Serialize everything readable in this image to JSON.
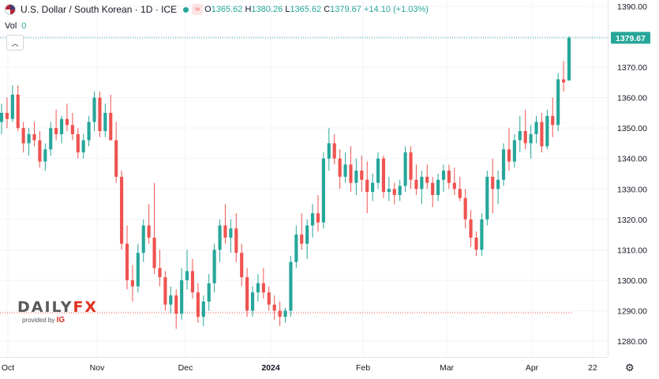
{
  "header": {
    "symbol": "U.S. Dollar / South Korean · 1D · ICE",
    "o_label": "O",
    "o_value": "1365.62",
    "h_label": "H",
    "h_value": "1380.26",
    "l_label": "L",
    "l_value": "1365.62",
    "c_label": "C",
    "c_value": "1379.67",
    "change": "+14.10 (+1.03%)",
    "tilde": "≈"
  },
  "volume": {
    "label": "Vol",
    "value": "0"
  },
  "logo": {
    "main_a": "DAILY",
    "main_b": "FX",
    "sub": "provided by",
    "brand": "IG"
  },
  "colors": {
    "up": "#26a69a",
    "down": "#ef5350",
    "grid": "#f0f3fa",
    "axis_text": "#131722"
  },
  "chart_data": {
    "type": "candlestick",
    "ylim": [
      1276,
      1391
    ],
    "y_ticks": [
      "1280.00",
      "1290.00",
      "1300.00",
      "1310.00",
      "1320.00",
      "1330.00",
      "1340.00",
      "1350.00",
      "1360.00",
      "1370.00",
      "1380.00",
      "1390.00"
    ],
    "x_labels": [
      "Oct",
      "Nov",
      "Dec",
      "2024",
      "Feb",
      "Mar",
      "Apr",
      "22"
    ],
    "last_price_label": "1379.67",
    "last_price": 1379.67,
    "reference_line": 1289.3,
    "candles": [
      [
        1352,
        1358,
        1348,
        1355
      ],
      [
        1355,
        1360,
        1350,
        1353
      ],
      [
        1353,
        1364,
        1352,
        1361
      ],
      [
        1361,
        1364,
        1349,
        1350
      ],
      [
        1350,
        1352,
        1342,
        1345
      ],
      [
        1345,
        1350,
        1341,
        1348
      ],
      [
        1348,
        1352,
        1344,
        1346
      ],
      [
        1346,
        1349,
        1337,
        1339
      ],
      [
        1339,
        1345,
        1336,
        1343
      ],
      [
        1343,
        1352,
        1341,
        1350
      ],
      [
        1350,
        1356,
        1346,
        1348
      ],
      [
        1348,
        1354,
        1345,
        1353
      ],
      [
        1353,
        1358,
        1349,
        1351
      ],
      [
        1351,
        1355,
        1346,
        1348
      ],
      [
        1348,
        1350,
        1340,
        1342
      ],
      [
        1342,
        1348,
        1340,
        1346
      ],
      [
        1346,
        1354,
        1344,
        1352
      ],
      [
        1352,
        1362,
        1349,
        1360
      ],
      [
        1360,
        1362,
        1347,
        1349
      ],
      [
        1349,
        1358,
        1347,
        1355
      ],
      [
        1355,
        1361,
        1346,
        1346
      ],
      [
        1346,
        1352,
        1332,
        1334
      ],
      [
        1334,
        1336,
        1310,
        1312
      ],
      [
        1312,
        1318,
        1297,
        1300
      ],
      [
        1300,
        1305,
        1293,
        1298
      ],
      [
        1298,
        1312,
        1296,
        1309
      ],
      [
        1309,
        1320,
        1306,
        1318
      ],
      [
        1318,
        1325,
        1312,
        1314
      ],
      [
        1314,
        1332,
        1302,
        1304
      ],
      [
        1304,
        1310,
        1298,
        1301
      ],
      [
        1301,
        1303,
        1290,
        1292
      ],
      [
        1292,
        1298,
        1289,
        1295
      ],
      [
        1295,
        1297,
        1284,
        1289
      ],
      [
        1289,
        1304,
        1287,
        1300
      ],
      [
        1300,
        1310,
        1297,
        1303
      ],
      [
        1303,
        1307,
        1294,
        1296
      ],
      [
        1296,
        1299,
        1286,
        1288
      ],
      [
        1288,
        1295,
        1285,
        1293
      ],
      [
        1293,
        1302,
        1290,
        1299
      ],
      [
        1299,
        1312,
        1296,
        1310
      ],
      [
        1310,
        1320,
        1306,
        1318
      ],
      [
        1318,
        1325,
        1312,
        1314
      ],
      [
        1314,
        1320,
        1309,
        1317
      ],
      [
        1317,
        1322,
        1306,
        1309
      ],
      [
        1309,
        1312,
        1298,
        1301
      ],
      [
        1301,
        1304,
        1288,
        1290
      ],
      [
        1290,
        1298,
        1288,
        1296
      ],
      [
        1296,
        1302,
        1293,
        1299
      ],
      [
        1299,
        1304,
        1294,
        1296
      ],
      [
        1296,
        1298,
        1290,
        1292
      ],
      [
        1292,
        1295,
        1287,
        1290
      ],
      [
        1290,
        1293,
        1285,
        1288
      ],
      [
        1288,
        1291,
        1286,
        1290
      ],
      [
        1290,
        1308,
        1288,
        1306
      ],
      [
        1306,
        1318,
        1304,
        1315
      ],
      [
        1315,
        1322,
        1310,
        1312
      ],
      [
        1312,
        1320,
        1307,
        1318
      ],
      [
        1318,
        1325,
        1314,
        1322
      ],
      [
        1322,
        1328,
        1316,
        1319
      ],
      [
        1319,
        1342,
        1317,
        1340
      ],
      [
        1340,
        1350,
        1336,
        1345
      ],
      [
        1345,
        1348,
        1338,
        1340
      ],
      [
        1340,
        1343,
        1330,
        1334
      ],
      [
        1334,
        1342,
        1332,
        1338
      ],
      [
        1338,
        1344,
        1329,
        1332
      ],
      [
        1332,
        1340,
        1328,
        1336
      ],
      [
        1336,
        1341,
        1329,
        1333
      ],
      [
        1333,
        1339,
        1322,
        1329
      ],
      [
        1329,
        1335,
        1326,
        1332
      ],
      [
        1332,
        1342,
        1330,
        1340
      ],
      [
        1340,
        1341,
        1327,
        1329
      ],
      [
        1329,
        1334,
        1326,
        1330
      ],
      [
        1330,
        1332,
        1325,
        1328
      ],
      [
        1328,
        1333,
        1326,
        1331
      ],
      [
        1331,
        1344,
        1329,
        1342
      ],
      [
        1342,
        1344,
        1330,
        1333
      ],
      [
        1333,
        1338,
        1328,
        1330
      ],
      [
        1330,
        1336,
        1325,
        1334
      ],
      [
        1334,
        1338,
        1330,
        1332
      ],
      [
        1332,
        1334,
        1324,
        1328
      ],
      [
        1328,
        1335,
        1326,
        1333
      ],
      [
        1333,
        1338,
        1329,
        1336
      ],
      [
        1336,
        1338,
        1330,
        1332
      ],
      [
        1332,
        1337,
        1328,
        1330
      ],
      [
        1330,
        1334,
        1326,
        1327
      ],
      [
        1327,
        1330,
        1317,
        1320
      ],
      [
        1320,
        1323,
        1311,
        1314
      ],
      [
        1314,
        1316,
        1308,
        1310
      ],
      [
        1310,
        1322,
        1308,
        1320
      ],
      [
        1320,
        1336,
        1318,
        1334
      ],
      [
        1334,
        1340,
        1322,
        1330
      ],
      [
        1330,
        1336,
        1325,
        1333
      ],
      [
        1333,
        1345,
        1331,
        1343
      ],
      [
        1343,
        1350,
        1336,
        1339
      ],
      [
        1339,
        1348,
        1337,
        1346
      ],
      [
        1346,
        1354,
        1342,
        1349
      ],
      [
        1349,
        1356,
        1343,
        1345
      ],
      [
        1345,
        1351,
        1340,
        1348
      ],
      [
        1348,
        1354,
        1345,
        1352
      ],
      [
        1352,
        1355,
        1342,
        1344
      ],
      [
        1344,
        1356,
        1343,
        1354
      ],
      [
        1354,
        1360,
        1347,
        1351
      ],
      [
        1351,
        1368,
        1349,
        1366
      ],
      [
        1366,
        1372,
        1362,
        1365
      ],
      [
        1365.62,
        1380.26,
        1365.62,
        1379.67
      ]
    ]
  }
}
